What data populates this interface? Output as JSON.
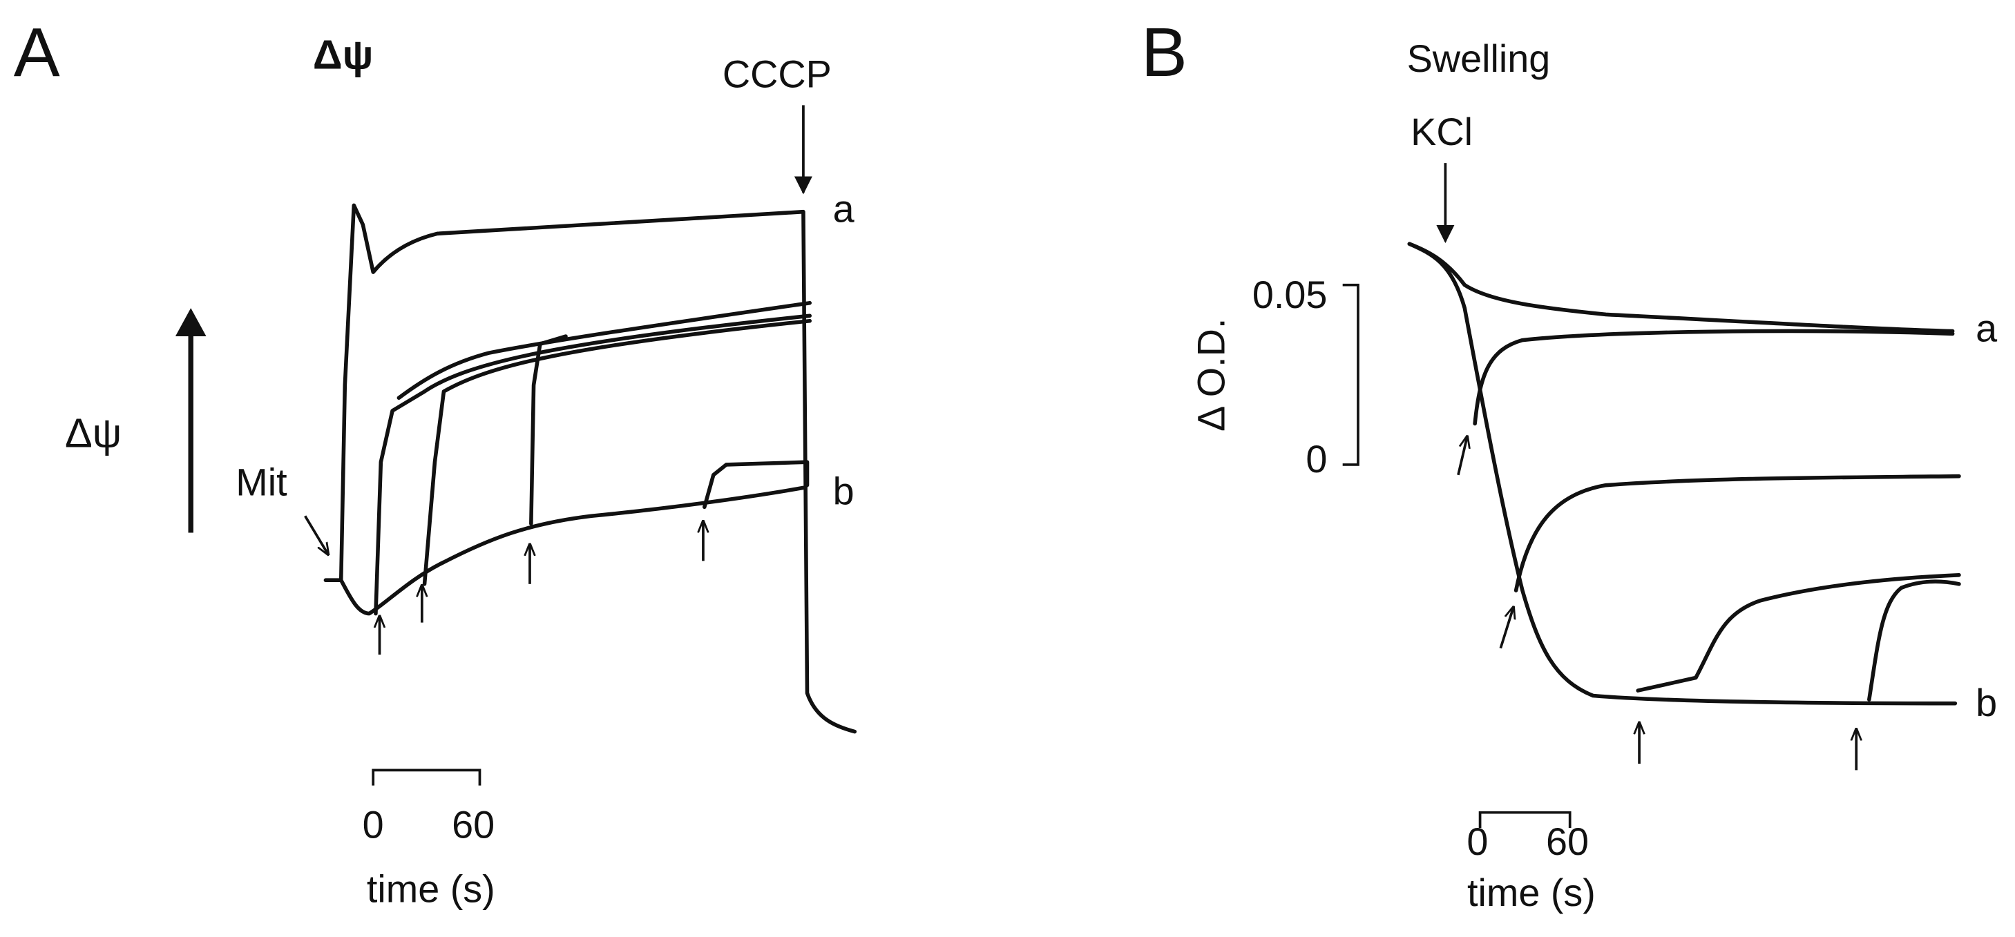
{
  "panel_a": {
    "letter": "A",
    "title": "Δψ",
    "cccp_label": "CCCP",
    "trace_a_label": "a",
    "trace_b_label": "b",
    "axis_label": "Δψ",
    "mit_label": "Mit",
    "time_start": "0",
    "time_end": "60",
    "time_label": "time (s)"
  },
  "panel_b": {
    "letter": "B",
    "title": "Swelling",
    "kcl_label": "KCl",
    "scale_top": "0.05",
    "scale_bottom": "0",
    "axis_label": "Δ O.D.",
    "trace_a_label": "a",
    "trace_b_label": "b",
    "time_start": "0",
    "time_end": "60",
    "time_label": "time (s)"
  }
}
